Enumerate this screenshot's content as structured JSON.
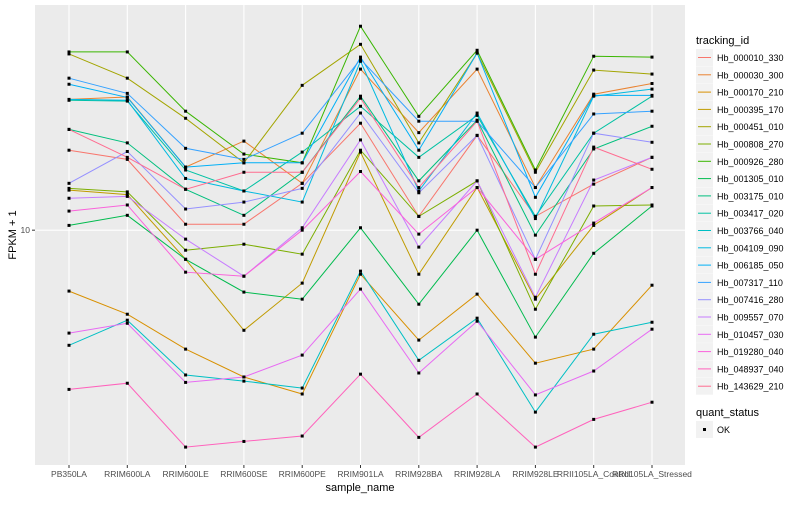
{
  "chart_data": {
    "type": "line",
    "xlabel": "sample_name",
    "ylabel": "FPKM + 1",
    "y_scale": "log10",
    "ylim": [
      1.45,
      63.7
    ],
    "y_ticks": [
      10
    ],
    "y_tick_labels": [
      "10"
    ],
    "grid": true,
    "legend_placement": "right",
    "categories": [
      "PB350LA",
      "RRIM600LA",
      "RRIM600LE",
      "RRIM600SE",
      "RRIM600PE",
      "RRIM901LA",
      "RRIM928BA",
      "RRIM928LA",
      "RRIM928LE",
      "RRII105LA_Control",
      "RRII105LA_Stressed"
    ],
    "legend_title": "tracking_id",
    "series": [
      {
        "name": "Hb_000010_330",
        "color": "#F8766D",
        "values": [
          19.3,
          17.9,
          10.5,
          10.5,
          14.7,
          24.1,
          11.2,
          21.8,
          11.2,
          14.6,
          18.2
        ]
      },
      {
        "name": "Hb_000030_300",
        "color": "#EA8331",
        "values": [
          29.3,
          29.9,
          16.8,
          20.8,
          14.7,
          37.6,
          22.3,
          37.6,
          14.2,
          30.6,
          33.4
        ]
      },
      {
        "name": "Hb_000170_210",
        "color": "#D89000",
        "values": [
          6.06,
          5.01,
          3.76,
          2.99,
          2.6,
          6.96,
          4.05,
          5.91,
          3.35,
          3.76,
          6.36
        ]
      },
      {
        "name": "Hb_000395_170",
        "color": "#C09B00",
        "values": [
          13.9,
          13.4,
          7.87,
          4.39,
          6.47,
          19.0,
          6.96,
          14.2,
          5.67,
          10.4,
          14.2
        ]
      },
      {
        "name": "Hb_000451_010",
        "color": "#A3A500",
        "values": [
          42.6,
          34.9,
          25.1,
          17.4,
          32.9,
          46.1,
          20.5,
          42.9,
          16.1,
          37.3,
          36.1
        ]
      },
      {
        "name": "Hb_000808_270",
        "color": "#7CAE00",
        "values": [
          14.1,
          13.7,
          8.48,
          8.91,
          8.21,
          19.3,
          11.2,
          15.0,
          5.22,
          12.2,
          12.3
        ]
      },
      {
        "name": "Hb_000926_280",
        "color": "#39B600",
        "values": [
          43.3,
          43.3,
          26.6,
          18.7,
          17.4,
          53.5,
          25.5,
          43.9,
          16.4,
          41.8,
          41.5
        ]
      },
      {
        "name": "Hb_001305_010",
        "color": "#00BB4E",
        "values": [
          10.4,
          11.3,
          7.87,
          6.01,
          5.67,
          10.2,
          5.44,
          10.0,
          4.15,
          8.27,
          12.2
        ]
      },
      {
        "name": "Hb_003175_010",
        "color": "#00BF7D",
        "values": [
          22.9,
          20.5,
          14.0,
          11.3,
          16.1,
          30.1,
          15.0,
          24.7,
          9.6,
          19.5,
          23.5
        ]
      },
      {
        "name": "Hb_003417_020",
        "color": "#00C1A3",
        "values": [
          29.1,
          28.9,
          16.4,
          13.8,
          19.0,
          27.7,
          18.2,
          25.7,
          11.2,
          22.2,
          30.1
        ]
      },
      {
        "name": "Hb_003766_040",
        "color": "#00BFC4",
        "values": [
          3.88,
          4.77,
          3.04,
          2.89,
          2.73,
          7.14,
          3.43,
          4.85,
          2.24,
          4.25,
          4.69
        ]
      },
      {
        "name": "Hb_004109_090",
        "color": "#00BAE0",
        "values": [
          29.3,
          29.1,
          15.3,
          13.8,
          12.6,
          40.1,
          13.8,
          26.2,
          11.0,
          30.1,
          31.9
        ]
      },
      {
        "name": "Hb_006185_050",
        "color": "#00B0F6",
        "values": [
          33.2,
          29.8,
          16.8,
          17.4,
          17.4,
          41.5,
          19.3,
          42.9,
          13.1,
          30.3,
          30.3
        ]
      },
      {
        "name": "Hb_007317_110",
        "color": "#35A2FF",
        "values": [
          34.9,
          30.8,
          19.6,
          17.9,
          22.2,
          40.8,
          24.5,
          24.5,
          14.2,
          26.0,
          26.6
        ]
      },
      {
        "name": "Hb_007416_280",
        "color": "#9590FF",
        "values": [
          14.7,
          19.1,
          11.9,
          12.6,
          14.1,
          26.2,
          13.6,
          21.8,
          7.87,
          22.2,
          20.6
        ]
      },
      {
        "name": "Hb_009557_070",
        "color": "#C77CFF",
        "values": [
          13.0,
          13.2,
          9.29,
          6.85,
          10.2,
          21.0,
          8.7,
          15.0,
          5.76,
          15.1,
          18.2
        ]
      },
      {
        "name": "Hb_010457_030",
        "color": "#E76BF3",
        "values": [
          4.29,
          4.65,
          2.86,
          2.99,
          3.58,
          6.16,
          3.09,
          4.73,
          2.58,
          3.14,
          4.43
        ]
      },
      {
        "name": "Hb_019280_040",
        "color": "#FA62DB",
        "values": [
          11.7,
          12.3,
          7.08,
          6.85,
          10.0,
          16.2,
          9.68,
          14.2,
          7.87,
          10.6,
          14.2
        ]
      },
      {
        "name": "Hb_048937_040",
        "color": "#FF62BC",
        "values": [
          2.7,
          2.84,
          1.68,
          1.76,
          1.84,
          3.06,
          1.82,
          2.6,
          1.68,
          2.11,
          2.43
        ]
      },
      {
        "name": "Hb_143629_210",
        "color": "#FF6C90",
        "values": [
          22.9,
          18.2,
          14.0,
          16.1,
          16.1,
          29.6,
          14.2,
          24.5,
          6.96,
          19.8,
          16.5
        ]
      }
    ],
    "shape_legend": {
      "title": "quant_status",
      "items": [
        "OK"
      ]
    }
  }
}
